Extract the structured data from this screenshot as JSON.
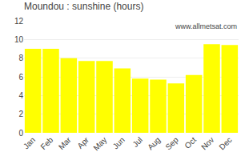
{
  "chart_data": {
    "type": "bar",
    "title": "Moundou : sunshine (hours)",
    "categories": [
      "Jan",
      "Feb",
      "Mar",
      "Apr",
      "May",
      "Jun",
      "Jul",
      "Aug",
      "Sep",
      "Oct",
      "Nov",
      "Dec"
    ],
    "values": [
      9.0,
      9.0,
      8.0,
      7.7,
      7.7,
      6.9,
      5.8,
      5.7,
      5.3,
      6.2,
      9.5,
      9.4
    ],
    "color": "#ffff00",
    "ylim": [
      0,
      12
    ],
    "yticks": [
      0,
      2,
      4,
      6,
      8,
      10,
      12
    ],
    "grid": true,
    "annotations": [
      "www.allmetsat.com"
    ]
  }
}
